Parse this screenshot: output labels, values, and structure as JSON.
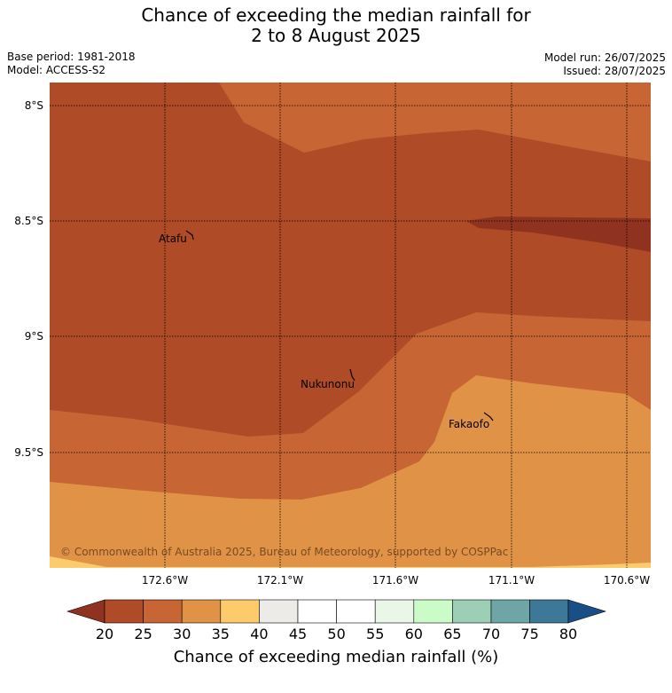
{
  "title": {
    "line1": "Chance of exceeding the median rainfall for",
    "line2": "2 to 8 August 2025"
  },
  "info": {
    "base_period": "Base period: 1981-2018",
    "model": "Model: ACCESS-S2",
    "model_run": "Model run: 26/07/2025",
    "issued": "Issued: 28/07/2025"
  },
  "map": {
    "lat_labels": [
      "8°S",
      "8.5°S",
      "9°S",
      "9.5°S"
    ],
    "lon_labels": [
      "172.6°W",
      "172.1°W",
      "171.6°W",
      "171.1°W",
      "170.6°W"
    ],
    "places": [
      "Atafu",
      "Nukunonu",
      "Fakaofo"
    ],
    "copyright": "© Commonwealth of Australia 2025, Bureau of Meteorology, supported by COSPPac"
  },
  "colorbar": {
    "title": "Chance of exceeding median rainfall (%)",
    "ticks": [
      "20",
      "25",
      "30",
      "35",
      "40",
      "45",
      "50",
      "55",
      "60",
      "65",
      "70",
      "75",
      "80"
    ],
    "colors": {
      "below20": "#8f3320",
      "c20_25": "#af4b26",
      "c25_30": "#c86534",
      "c30_35": "#e09346",
      "c35_40": "#fdca6c",
      "c40_45": "#ecebe7",
      "c45_50": "#ffffff",
      "c50_55": "#ffffff",
      "c55_60": "#e9f6e8",
      "c60_65": "#cbfcc8",
      "c65_70": "#9ccfb6",
      "c70_75": "#6ea6a8",
      "c75_80": "#3e7899",
      "above80": "#1a4e86"
    }
  }
}
